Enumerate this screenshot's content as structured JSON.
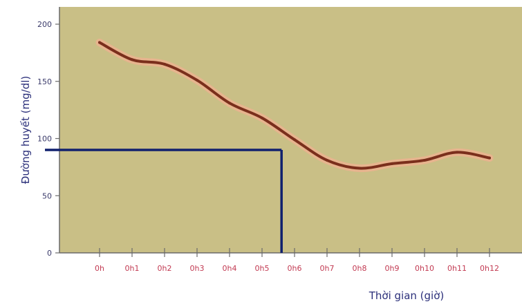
{
  "chart_data": {
    "type": "line",
    "title": "",
    "xlabel": "Thời gian (giờ)",
    "ylabel": "Đường huyết (mg/dl)",
    "categories": [
      "0h",
      "0h1",
      "0h2",
      "0h3",
      "0h4",
      "0h5",
      "0h6",
      "0h7",
      "0h8",
      "0h9",
      "0h10",
      "0h11",
      "0h12"
    ],
    "ylim": [
      0,
      200
    ],
    "yticks": [
      0,
      50,
      100,
      150,
      200
    ],
    "ytick_labels": [
      "0",
      "50",
      "100",
      "150",
      "200"
    ],
    "series": [
      {
        "values": [
          184,
          169,
          165,
          151,
          131,
          118,
          99,
          81,
          74,
          78,
          81,
          88,
          83
        ]
      }
    ],
    "grid": false,
    "annotation": {
      "x_index": 5.6,
      "y": 90
    },
    "colors": {
      "plot_bg": "#c9bf86",
      "line": "#7a2f1c",
      "line_glow": "#f0b090",
      "annotation": "#10206e",
      "axis": "#6a6a6a"
    }
  }
}
